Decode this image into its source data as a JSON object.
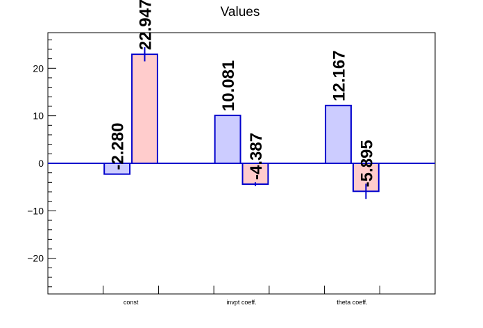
{
  "chart_data": {
    "type": "bar",
    "title": "Values",
    "categories": [
      "const",
      "invpt coeff.",
      "theta coeff."
    ],
    "series": [
      {
        "values": [
          -2.28,
          10.081,
          12.167
        ],
        "errors": [
          0.0,
          0.0,
          0.0
        ],
        "fill": "#ccccff",
        "stroke": "#0000cc"
      },
      {
        "values": [
          22.947,
          -4.387,
          -5.895
        ],
        "errors": [
          1.5,
          0.4,
          1.6
        ],
        "fill": "#ffcccc",
        "stroke": "#0000cc"
      }
    ],
    "data_labels": [
      [
        "-2.280",
        "10.081",
        "12.167"
      ],
      [
        "22.947",
        "-4.387",
        "-5.895"
      ]
    ],
    "ylim": [
      -27.5,
      27.5
    ],
    "y_ticks": [
      -20,
      -10,
      0,
      10,
      20
    ],
    "y_tick_labels": [
      "−20",
      "−10",
      "0",
      "10",
      "20"
    ],
    "grid": false,
    "zero_line_color": "#0000cc"
  }
}
